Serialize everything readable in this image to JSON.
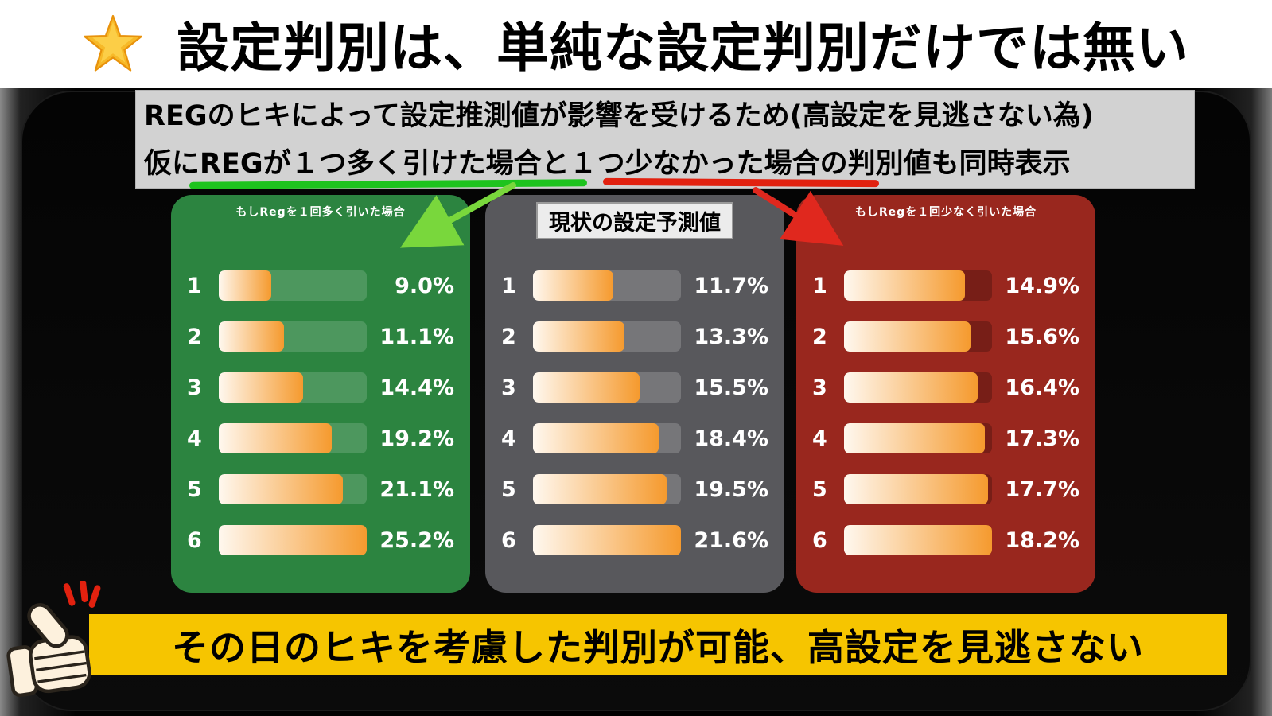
{
  "header": {
    "title": "設定判別は、単純な設定判別だけでは無い",
    "star_icon": "star-icon"
  },
  "note": {
    "line1": "REGのヒキによって設定推測値が影響を受けるため(高設定を見逃さない為)",
    "line2": "仮にREGが１つ多く引けた場合と１つ少なかった場合の判別値も同時表示"
  },
  "annotations": {
    "green_underline_color": "#1ec31e",
    "red_underline_color": "#e2210f",
    "green_arrow_color": "#79d73c",
    "red_arrow_color": "#e0281e"
  },
  "chart_data": [
    {
      "type": "bar",
      "orientation": "horizontal",
      "title": "もしRegを１回多く引いた場合",
      "categories": [
        "1",
        "2",
        "3",
        "4",
        "5",
        "6"
      ],
      "values": [
        9.0,
        11.1,
        14.4,
        19.2,
        21.1,
        25.2
      ],
      "value_labels": [
        "9.0%",
        "11.1%",
        "14.4%",
        "19.2%",
        "21.1%",
        "25.2%"
      ],
      "panel_color": "#2c8440",
      "track_color": "rgba(255,255,255,0.16)",
      "bar_gradient": [
        "#fff8ef",
        "#f59a2e"
      ],
      "legend": "none",
      "grid": "off"
    },
    {
      "type": "bar",
      "orientation": "horizontal",
      "title": "現状の設定予測値",
      "categories": [
        "1",
        "2",
        "3",
        "4",
        "5",
        "6"
      ],
      "values": [
        11.7,
        13.3,
        15.5,
        18.4,
        19.5,
        21.6
      ],
      "value_labels": [
        "11.7%",
        "13.3%",
        "15.5%",
        "18.4%",
        "19.5%",
        "21.6%"
      ],
      "panel_color": "#58585c",
      "track_color": "rgba(255,255,255,0.18)",
      "bar_gradient": [
        "#fff8ef",
        "#f59a2e"
      ],
      "legend": "none",
      "grid": "off"
    },
    {
      "type": "bar",
      "orientation": "horizontal",
      "title": "もしRegを１回少なく引いた場合",
      "categories": [
        "1",
        "2",
        "3",
        "4",
        "5",
        "6"
      ],
      "values": [
        14.9,
        15.6,
        16.4,
        17.3,
        17.7,
        18.2
      ],
      "value_labels": [
        "14.9%",
        "15.6%",
        "16.4%",
        "17.3%",
        "17.7%",
        "18.2%"
      ],
      "panel_color": "#99271e",
      "track_color": "rgba(0,0,0,0.22)",
      "bar_gradient": [
        "#fff8ef",
        "#f59a2e"
      ],
      "legend": "none",
      "grid": "off"
    }
  ],
  "footer": {
    "text": "その日のヒキを考慮した判別が可能、高設定を見逃さない",
    "background": "#f6c500",
    "thumb_icon": "thumbs-up-icon"
  }
}
